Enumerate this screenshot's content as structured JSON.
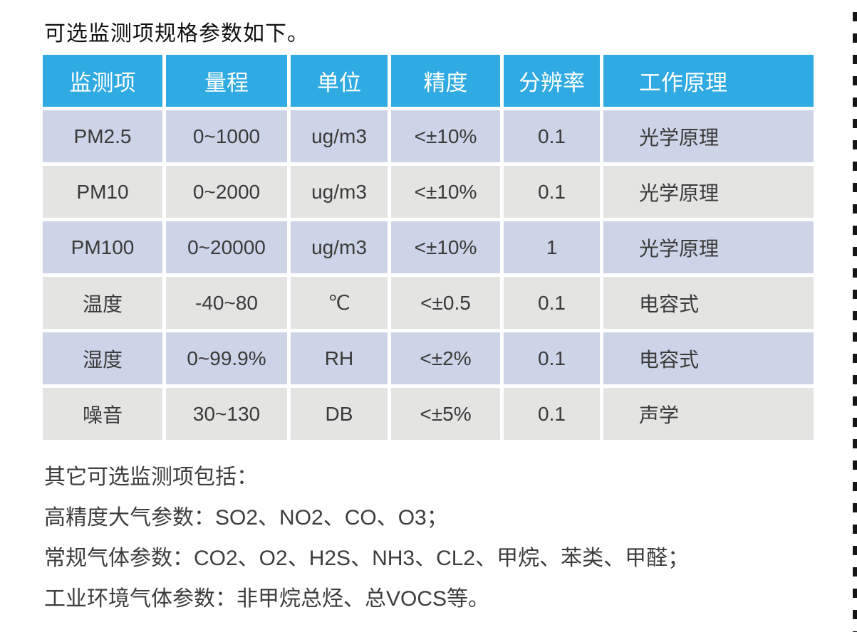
{
  "title": "可选监测项规格参数如下。",
  "table": {
    "headers": [
      "监测项",
      "量程",
      "单位",
      "精度",
      "分辨率",
      "工作原理"
    ],
    "rows": [
      [
        "PM2.5",
        "0~1000",
        "ug/m3",
        "<±10%",
        "0.1",
        "光学原理"
      ],
      [
        "PM10",
        "0~2000",
        "ug/m3",
        "<±10%",
        "0.1",
        "光学原理"
      ],
      [
        "PM100",
        "0~20000",
        "ug/m3",
        "<±10%",
        "1",
        "光学原理"
      ],
      [
        "温度",
        "-40~80",
        "℃",
        "<±0.5",
        "0.1",
        "电容式"
      ],
      [
        "湿度",
        "0~99.9%",
        "RH",
        "<±2%",
        "0.1",
        "电容式"
      ],
      [
        "噪音",
        "30~130",
        "DB",
        "<±5%",
        "0.1",
        "声学"
      ]
    ]
  },
  "notes": {
    "intro": "其它可选监测项包括：",
    "lines": [
      "高精度大气参数：SO2、NO2、CO、O3；",
      "常规气体参数：CO2、O2、H2S、NH3、CL2、甲烷、苯类、甲醛；",
      "工业环境气体参数：非甲烷总烃、总VOCS等。"
    ]
  },
  "colors": {
    "header_bg": "#2faae2",
    "header_text": "#ffffff",
    "row_a_bg": "#cdd4e8",
    "row_b_bg": "#e4e4e3",
    "cell_text": "#3a3a3a",
    "title_color": "#101010",
    "notes_color": "#3d3d3d",
    "dash_color": "#151515"
  }
}
